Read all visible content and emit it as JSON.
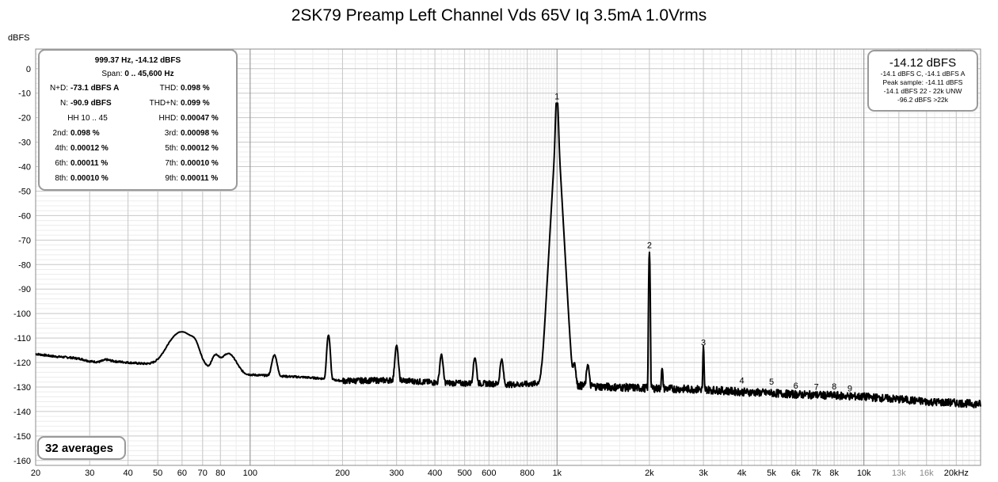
{
  "title": "2SK79 Preamp Left Channel Vds 65V Iq 3.5mA 1.0Vrms",
  "y_unit": "dBFS",
  "stats_box": {
    "header": "999.37 Hz, -14.12 dBFS",
    "span_label": "Span:",
    "span_value": "0 .. 45,600 Hz",
    "rows": [
      {
        "l1": "N+D:",
        "v1": "-73.1 dBFS A",
        "l2": "THD:",
        "v2": "0.098 %"
      },
      {
        "l1": "N:",
        "v1": "-90.9 dBFS",
        "l2": "THD+N:",
        "v2": "0.099 %"
      },
      {
        "hh": "HH 10 .. 45",
        "l2": "HHD:",
        "v2": "0.00047 %"
      },
      {
        "l1": "2nd:",
        "v1": "0.098 %",
        "l2": "3rd:",
        "v2": "0.00098 %"
      },
      {
        "l1": "4th:",
        "v1": "0.00012 %",
        "l2": "5th:",
        "v2": "0.00012 %"
      },
      {
        "l1": "6th:",
        "v1": "0.00011 %",
        "l2": "7th:",
        "v2": "0.00010 %"
      },
      {
        "l1": "8th:",
        "v1": "0.00010 %",
        "l2": "9th:",
        "v2": "0.00011 %"
      }
    ]
  },
  "level_box": {
    "main": "-14.12 dBFS",
    "lines": [
      "-14.1 dBFS C, -14.1 dBFS A",
      "Peak sample: -14.11 dBFS",
      "-14.1 dBFS 22 - 22k UNW",
      "-96.2 dBFS >22k"
    ]
  },
  "averages_label": "32 averages",
  "chart_data": {
    "type": "line",
    "x_scale": "log",
    "xlim": [
      20,
      24000
    ],
    "ylim": [
      -162,
      8
    ],
    "x_ticks": [
      {
        "v": 20,
        "label": "20"
      },
      {
        "v": 30,
        "label": "30"
      },
      {
        "v": 40,
        "label": "40"
      },
      {
        "v": 50,
        "label": "50"
      },
      {
        "v": 60,
        "label": "60"
      },
      {
        "v": 70,
        "label": "70"
      },
      {
        "v": 80,
        "label": "80"
      },
      {
        "v": 100,
        "label": "100"
      },
      {
        "v": 200,
        "label": "200"
      },
      {
        "v": 300,
        "label": "300"
      },
      {
        "v": 400,
        "label": "400"
      },
      {
        "v": 500,
        "label": "500"
      },
      {
        "v": 600,
        "label": "600"
      },
      {
        "v": 800,
        "label": "800"
      },
      {
        "v": 1000,
        "label": "1k"
      },
      {
        "v": 2000,
        "label": "2k"
      },
      {
        "v": 3000,
        "label": "3k"
      },
      {
        "v": 4000,
        "label": "4k"
      },
      {
        "v": 5000,
        "label": "5k"
      },
      {
        "v": 6000,
        "label": "6k"
      },
      {
        "v": 7000,
        "label": "7k"
      },
      {
        "v": 8000,
        "label": "8k"
      },
      {
        "v": 10000,
        "label": "10k"
      },
      {
        "v": 13000,
        "label": "13k"
      },
      {
        "v": 16000,
        "label": "16k"
      },
      {
        "v": 20000,
        "label": "20kHz"
      }
    ],
    "y_ticks": [
      {
        "v": 0,
        "label": "0"
      },
      {
        "v": -10,
        "label": "-10"
      },
      {
        "v": -20,
        "label": "-20"
      },
      {
        "v": -30,
        "label": "-30"
      },
      {
        "v": -40,
        "label": "-40"
      },
      {
        "v": -50,
        "label": "-50"
      },
      {
        "v": -60,
        "label": "-60"
      },
      {
        "v": -70,
        "label": "-70"
      },
      {
        "v": -80,
        "label": "-80"
      },
      {
        "v": -90,
        "label": "-90"
      },
      {
        "v": -100,
        "label": "-100"
      },
      {
        "v": -110,
        "label": "-110"
      },
      {
        "v": -120,
        "label": "-120"
      },
      {
        "v": -130,
        "label": "-130"
      },
      {
        "v": -140,
        "label": "-140"
      },
      {
        "v": -150,
        "label": "-150"
      },
      {
        "v": -160,
        "label": "-160"
      }
    ],
    "harmonic_labels": [
      {
        "label": "1",
        "f": 999.37,
        "db": -14.1
      },
      {
        "label": "2",
        "f": 2000,
        "db": -74.9
      },
      {
        "label": "3",
        "f": 3000,
        "db": -114.6
      },
      {
        "label": "4",
        "f": 4000,
        "db": -130.1
      },
      {
        "label": "5",
        "f": 5000,
        "db": -130.6
      },
      {
        "label": "6",
        "f": 6000,
        "db": -132.2
      },
      {
        "label": "7",
        "f": 7000,
        "db": -132.7
      },
      {
        "label": "8",
        "f": 8000,
        "db": -132.6
      },
      {
        "label": "9",
        "f": 9000,
        "db": -133.4
      }
    ],
    "noise_floor": [
      [
        20,
        -116.5
      ],
      [
        23,
        -117.5
      ],
      [
        26,
        -118
      ],
      [
        28,
        -118.5
      ],
      [
        30,
        -119.5
      ],
      [
        32,
        -119.8
      ],
      [
        34,
        -118.8
      ],
      [
        36,
        -119.5
      ],
      [
        40,
        -120
      ],
      [
        45,
        -120.5
      ],
      [
        50,
        -121
      ],
      [
        55,
        -122
      ],
      [
        58,
        -122.5
      ],
      [
        62,
        -123.5
      ],
      [
        66,
        -124
      ],
      [
        70,
        -124.8
      ],
      [
        80,
        -123.5
      ],
      [
        90,
        -124.5
      ],
      [
        100,
        -125
      ],
      [
        150,
        -126
      ],
      [
        170,
        -126.5
      ],
      [
        200,
        -127.5
      ],
      [
        300,
        -127.2
      ],
      [
        400,
        -128.2
      ],
      [
        500,
        -128.5
      ],
      [
        600,
        -128.6
      ],
      [
        700,
        -129
      ],
      [
        800,
        -128.8
      ],
      [
        900,
        -128.5
      ],
      [
        1200,
        -129.5
      ],
      [
        1500,
        -130
      ],
      [
        2000,
        -130.5
      ],
      [
        3000,
        -131
      ],
      [
        4000,
        -132
      ],
      [
        5000,
        -132.5
      ],
      [
        6000,
        -133
      ],
      [
        8000,
        -133.5
      ],
      [
        10000,
        -134
      ],
      [
        13000,
        -135
      ],
      [
        16000,
        -136
      ],
      [
        20000,
        -136.5
      ],
      [
        24000,
        -137
      ]
    ],
    "spurs": [
      {
        "f": 60,
        "db": -109,
        "w": 0.05
      },
      {
        "f": 66,
        "db": -123,
        "w": 0.015
      },
      {
        "f": 77,
        "db": -123.5,
        "w": 0.015
      },
      {
        "f": 85,
        "db": -121,
        "w": 0.03
      },
      {
        "f": 120,
        "db": -121,
        "w": 0.01
      },
      {
        "f": 180,
        "db": -110,
        "w": 0.006
      },
      {
        "f": 300,
        "db": -115,
        "w": 0.006
      },
      {
        "f": 420,
        "db": -119.5,
        "w": 0.006
      },
      {
        "f": 540,
        "db": -121,
        "w": 0.006
      },
      {
        "f": 660,
        "db": -122,
        "w": 0.006
      },
      {
        "f": 999.37,
        "db": -14.1,
        "w": 0.004
      },
      {
        "f": 1140,
        "db": -124.5,
        "w": 0.005
      },
      {
        "f": 1260,
        "db": -124.5,
        "w": 0.005
      },
      {
        "f": 2000,
        "db": -74.9,
        "w": 0.002
      },
      {
        "f": 2200,
        "db": -127,
        "w": 0.003
      },
      {
        "f": 3000,
        "db": -114.6,
        "w": 0.002
      }
    ],
    "fundamental_skirt": {
      "f": 999.37,
      "db": -14.1
    }
  }
}
